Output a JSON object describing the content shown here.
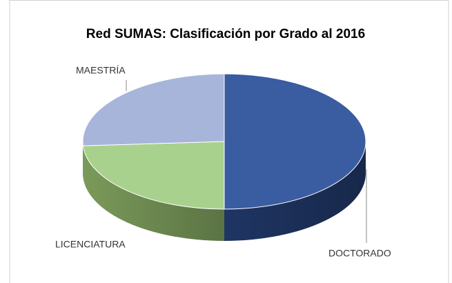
{
  "chart_data": {
    "type": "pie3d",
    "title": "Red SUMAS: Clasificación por Grado al 2016",
    "categories": [
      "DOCTORADO",
      "LICENCIATURA",
      "MAESTRÍA"
    ],
    "values": [
      50,
      24,
      26
    ],
    "colors": [
      "#3a5ca0",
      "#a9d18e",
      "#a7b5da"
    ],
    "side_colors": [
      "#1f3563",
      "#7a9a5a",
      "#7d8cb5"
    ]
  }
}
